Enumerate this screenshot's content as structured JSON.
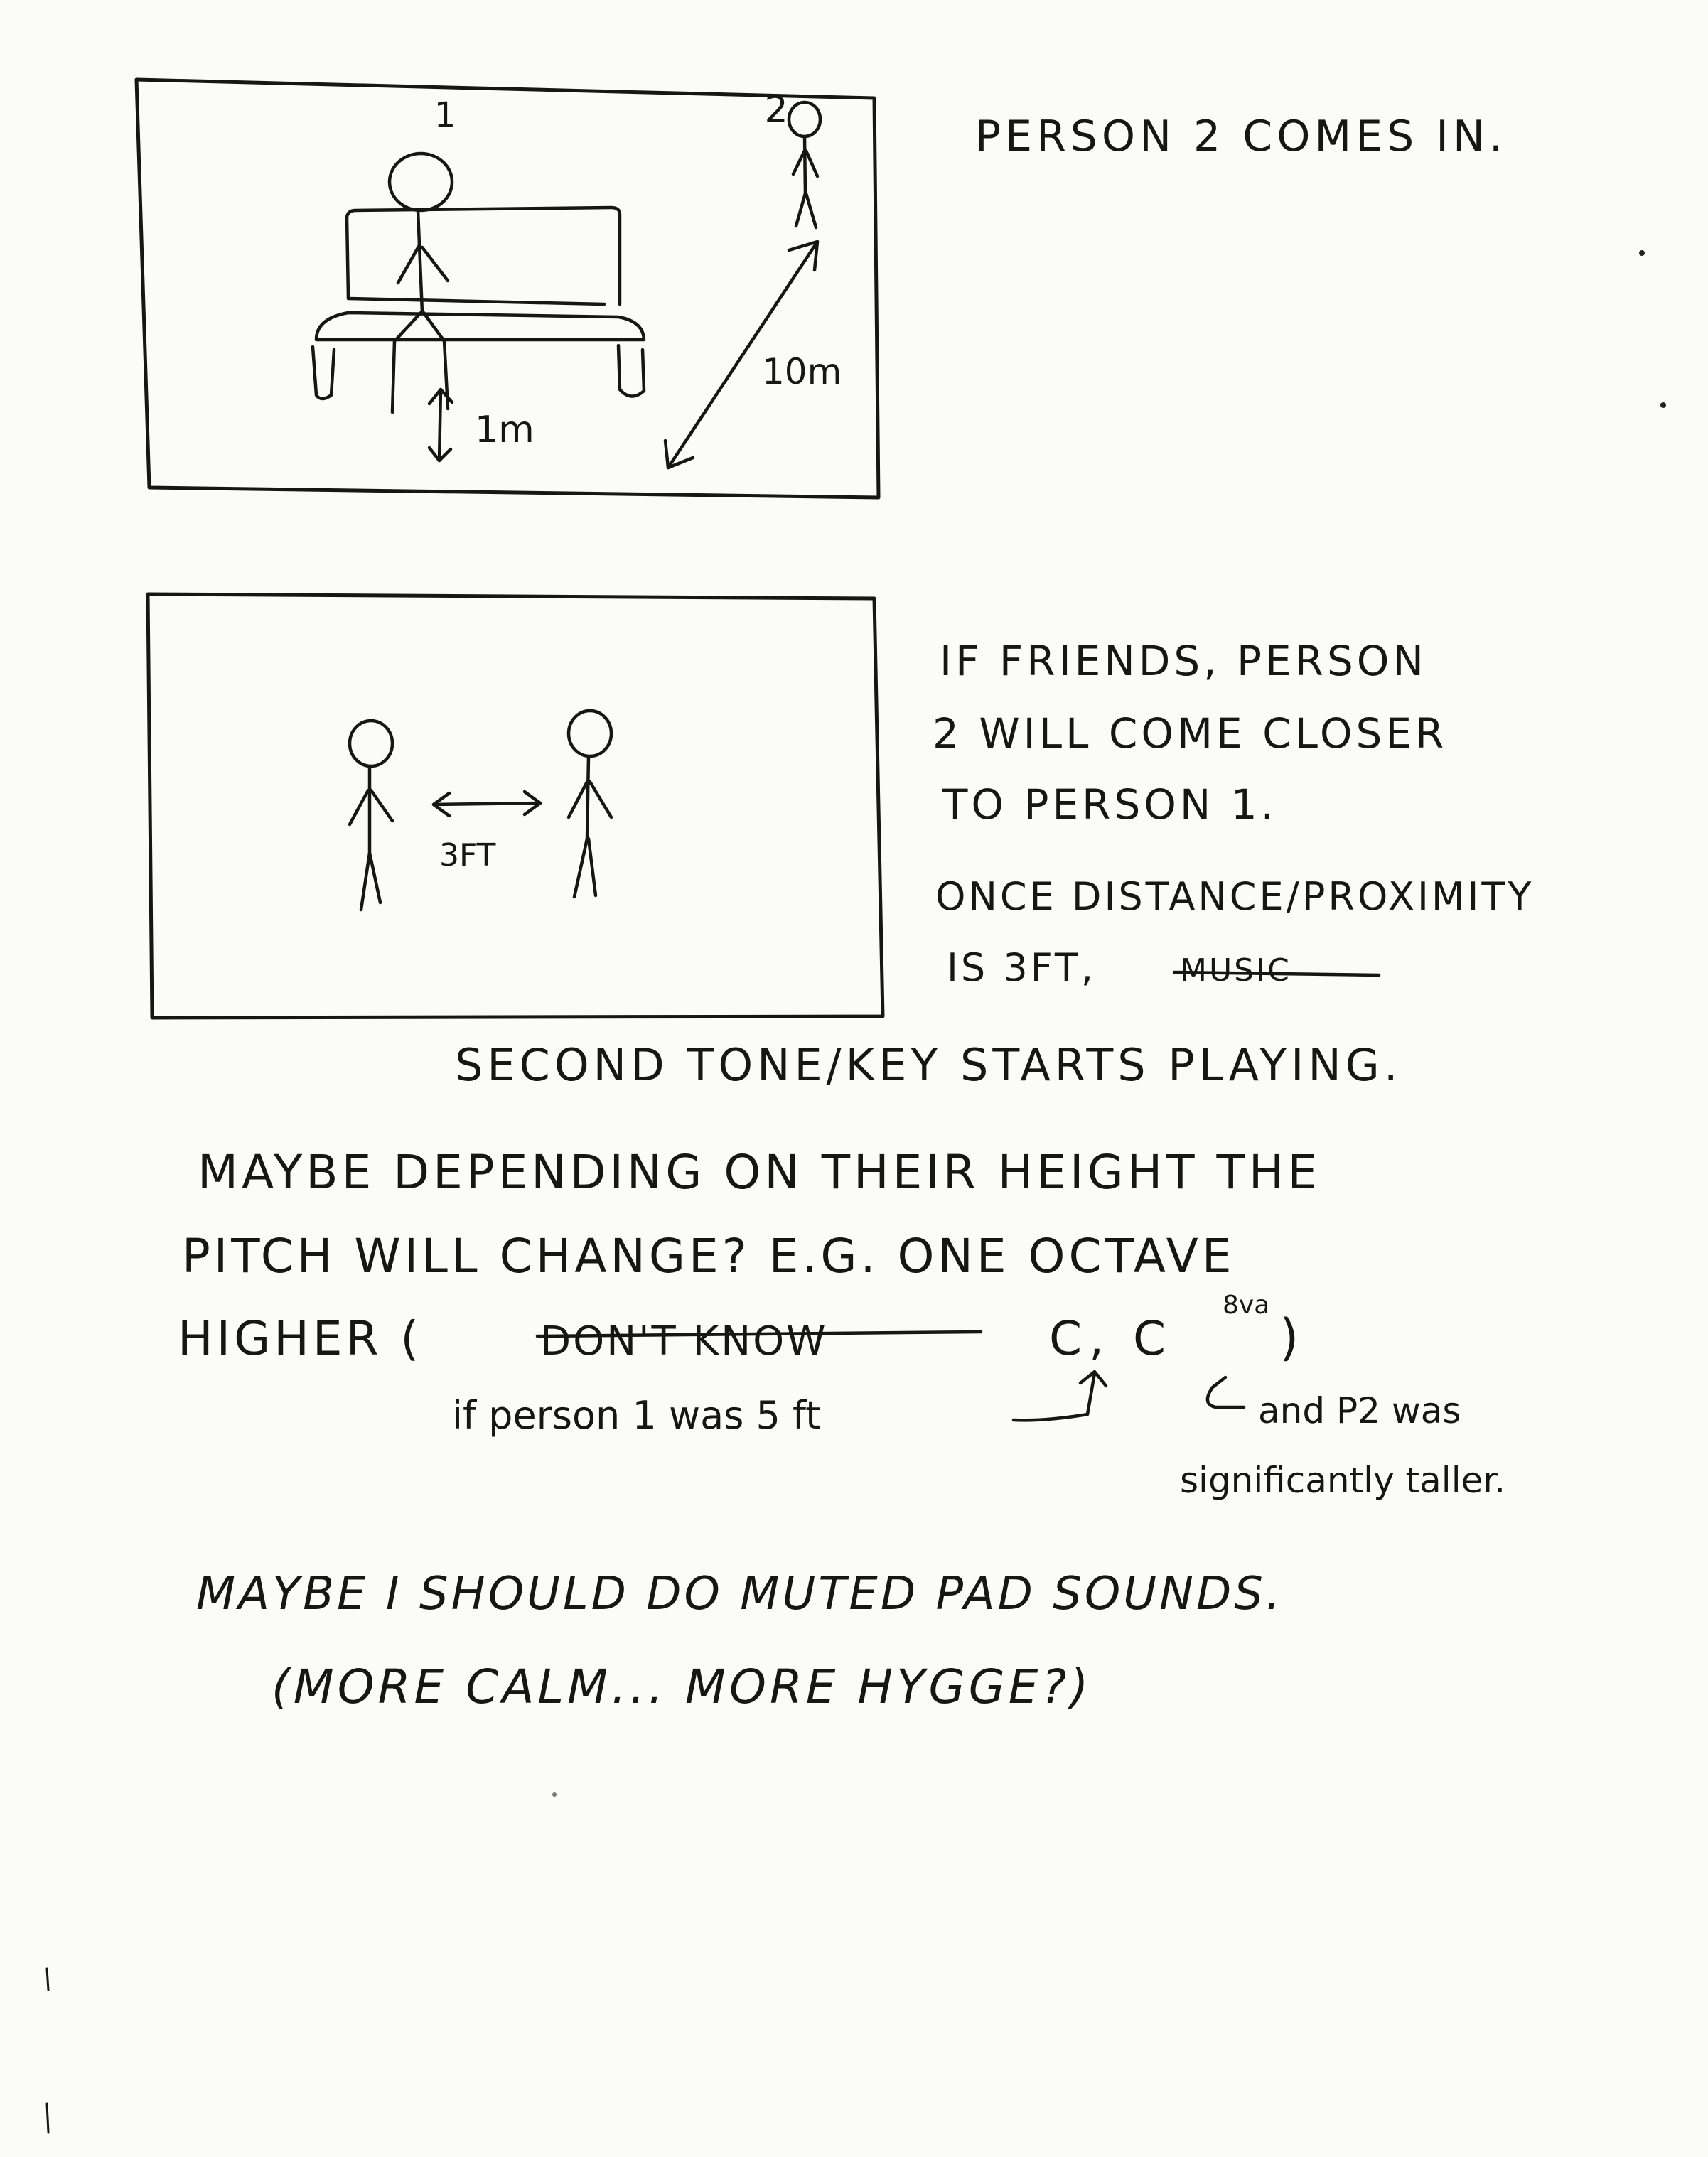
{
  "panel1": {
    "label_person1": "1",
    "label_person2": "2",
    "distance_near": "1m",
    "distance_far": "10m",
    "note": "PERSON 2 COMES IN."
  },
  "panel2": {
    "distance": "3FT",
    "note_lines": [
      "IF FRIENDS, PERSON",
      "2 WILL COME CLOSER",
      "TO PERSON 1."
    ],
    "proximity_lines": [
      "ONCE DISTANCE/PROXIMITY",
      "IS 3FT,"
    ],
    "struck_word": "MUSIC",
    "continuation": "SECOND TONE/KEY STARTS PLAYING."
  },
  "pitch_note": {
    "line1": "MAYBE DEPENDING ON THEIR HEIGHT THE",
    "line2": "PITCH WILL CHANGE? E.G. ONE OCTAVE",
    "line3_start": "HIGHER (",
    "line3_struck": "DON'T KNOW",
    "line3_end": "C, C",
    "superscript": "8va",
    "line3_close": ")",
    "annotation_left": "if person 1 was 5 ft",
    "annotation_right_line1": "and P2 was",
    "annotation_right_line2": "significantly taller."
  },
  "sound_note": {
    "line1": "MAYBE I SHOULD DO MUTED PAD SOUNDS.",
    "line2": "(MORE CALM... MORE HYGGE?)"
  }
}
